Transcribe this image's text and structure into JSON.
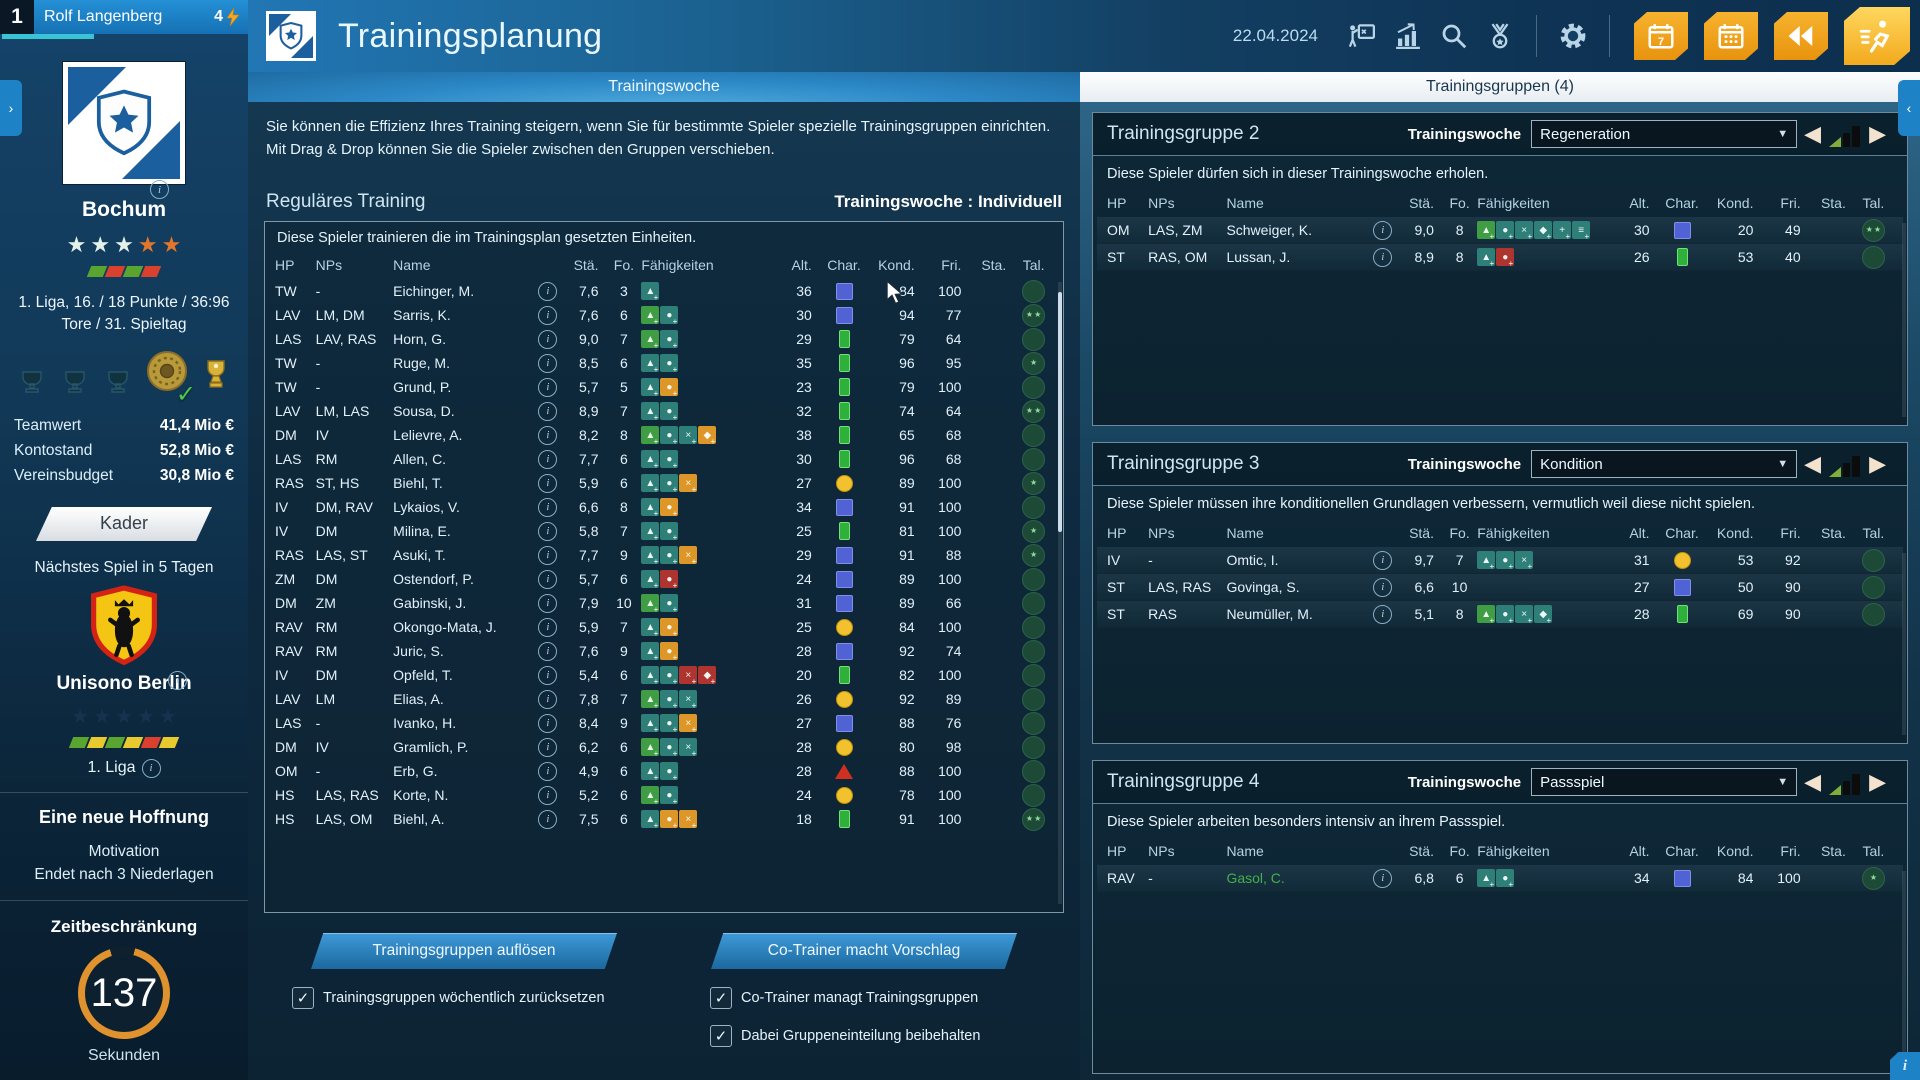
{
  "colors": {
    "accent_orange": "#f0a21c",
    "tab_blue": "#2b87c4",
    "panel_navy": "#0d2434",
    "name_green": "#43b049",
    "timer_orange": "#e0922f"
  },
  "sidebar": {
    "slot": "1",
    "manager": "Rolf Langenberg",
    "energy": "4",
    "club": "Bochum",
    "club_stars": [
      "light",
      "light",
      "light",
      "orange",
      "orange"
    ],
    "club_form": [
      "green",
      "red",
      "green",
      "red"
    ],
    "league_text": "1. Liga, 16. / 18 Punkte / 36:96 Tore / 31. Spieltag",
    "finances": [
      {
        "label": "Teamwert",
        "value": "41,4 Mio €"
      },
      {
        "label": "Kontostand",
        "value": "52,8 Mio €"
      },
      {
        "label": "Vereinsbudget",
        "value": "30,8 Mio €"
      }
    ],
    "kader_label": "Kader",
    "next_match": "Nächstes Spiel in 5 Tagen",
    "opponent": "Unisono Berlin",
    "opponent_stars": [
      "navy",
      "navy",
      "navy",
      "navy",
      "navy"
    ],
    "opponent_form": [
      "green",
      "yellow",
      "green",
      "yellow",
      "red",
      "yellow"
    ],
    "opponent_league": "1. Liga",
    "story": "Eine neue Hoffnung",
    "motivation_label": "Motivation",
    "motivation_value": "Endet nach 3 Niederlagen",
    "timer_label": "Zeitbeschränkung",
    "timer_value": "137",
    "timer_unit": "Sekunden"
  },
  "header": {
    "title": "Trainingsplanung",
    "date": "22.04.2024",
    "icons": [
      "tactics-board",
      "statistics",
      "search",
      "medal",
      "settings",
      "calendar-week",
      "calendar-month",
      "rewind",
      "continue"
    ]
  },
  "columns": [
    "HP",
    "NPs",
    "Name",
    "Stä.",
    "Fo.",
    "Fähigkeiten",
    "Alt.",
    "Char.",
    "Kond.",
    "Fri.",
    "Sta.",
    "Tal."
  ],
  "left_panel": {
    "tab": "Trainingswoche",
    "intro": "Sie können die Effizienz Ihres Training steigern, wenn Sie für bestimmte Spieler spezielle Trainingsgruppen einrichten. Mit Drag & Drop können Sie die Spieler zwischen den Gruppen verschieben.",
    "section_title": "Reguläres Training",
    "week_mode": "Trainingswoche : Individuell",
    "table_note": "Diese Spieler trainieren die im Trainingsplan gesetzten Einheiten.",
    "rows": [
      {
        "hp": "TW",
        "nps": "-",
        "name": "Eichinger, M.",
        "sta": "7,6",
        "fo": "3",
        "skills": [
          "teal"
        ],
        "alt": "36",
        "char": "blue",
        "kond": "84",
        "fri": "100",
        "tal": 0
      },
      {
        "hp": "LAV",
        "nps": "LM, DM",
        "name": "Sarris, K.",
        "sta": "7,6",
        "fo": "6",
        "skills": [
          "green",
          "teal"
        ],
        "alt": "30",
        "char": "blue",
        "kond": "94",
        "fri": "77",
        "tal": 2
      },
      {
        "hp": "LAS",
        "nps": "LAV, RAS",
        "name": "Horn, G.",
        "sta": "9,0",
        "fo": "7",
        "skills": [
          "green",
          "teal"
        ],
        "alt": "29",
        "char": "green",
        "kond": "79",
        "fri": "64",
        "tal": 0
      },
      {
        "hp": "TW",
        "nps": "-",
        "name": "Ruge, M.",
        "sta": "8,5",
        "fo": "6",
        "skills": [
          "teal",
          "teal"
        ],
        "alt": "35",
        "char": "green",
        "kond": "96",
        "fri": "95",
        "tal": 1
      },
      {
        "hp": "TW",
        "nps": "-",
        "name": "Grund, P.",
        "sta": "5,7",
        "fo": "5",
        "skills": [
          "teal",
          "orange"
        ],
        "alt": "23",
        "char": "green",
        "kond": "79",
        "fri": "100",
        "tal": 0
      },
      {
        "hp": "LAV",
        "nps": "LM, LAS",
        "name": "Sousa, D.",
        "sta": "8,9",
        "fo": "7",
        "skills": [
          "teal",
          "teal"
        ],
        "alt": "32",
        "char": "green",
        "kond": "74",
        "fri": "64",
        "tal": 2
      },
      {
        "hp": "DM",
        "nps": "IV",
        "name": "Lelievre, A.",
        "sta": "8,2",
        "fo": "8",
        "skills": [
          "green",
          "teal",
          "teal",
          "orange"
        ],
        "alt": "38",
        "char": "green",
        "kond": "65",
        "fri": "68",
        "tal": 0
      },
      {
        "hp": "LAS",
        "nps": "RM",
        "name": "Allen, C.",
        "sta": "7,7",
        "fo": "6",
        "skills": [
          "teal",
          "teal"
        ],
        "alt": "30",
        "char": "green",
        "kond": "96",
        "fri": "68",
        "tal": 0
      },
      {
        "hp": "RAS",
        "nps": "ST, HS",
        "name": "Biehl, T.",
        "sta": "5,9",
        "fo": "6",
        "skills": [
          "teal",
          "teal",
          "orange"
        ],
        "alt": "27",
        "char": "yellow",
        "kond": "89",
        "fri": "100",
        "tal": 1
      },
      {
        "hp": "IV",
        "nps": "DM, RAV",
        "name": "Lykaios, V.",
        "sta": "6,6",
        "fo": "8",
        "skills": [
          "teal",
          "orange"
        ],
        "alt": "34",
        "char": "blue",
        "kond": "91",
        "fri": "100",
        "tal": 0
      },
      {
        "hp": "IV",
        "nps": "DM",
        "name": "Milina, E.",
        "sta": "5,8",
        "fo": "7",
        "skills": [
          "teal",
          "teal"
        ],
        "alt": "25",
        "char": "green",
        "kond": "81",
        "fri": "100",
        "tal": 1
      },
      {
        "hp": "RAS",
        "nps": "LAS, ST",
        "name": "Asuki, T.",
        "sta": "7,7",
        "fo": "9",
        "skills": [
          "teal",
          "teal",
          "orange"
        ],
        "alt": "29",
        "char": "blue",
        "kond": "91",
        "fri": "88",
        "tal": 1
      },
      {
        "hp": "ZM",
        "nps": "DM",
        "name": "Ostendorf, P.",
        "sta": "5,7",
        "fo": "6",
        "skills": [
          "teal",
          "red"
        ],
        "alt": "24",
        "char": "blue",
        "kond": "89",
        "fri": "100",
        "tal": 0
      },
      {
        "hp": "DM",
        "nps": "ZM",
        "name": "Gabinski, J.",
        "sta": "7,9",
        "fo": "10",
        "skills": [
          "green",
          "teal"
        ],
        "alt": "31",
        "char": "blue",
        "kond": "89",
        "fri": "66",
        "tal": 0
      },
      {
        "hp": "RAV",
        "nps": "RM",
        "name": "Okongo-Mata, J.",
        "sta": "5,9",
        "fo": "7",
        "skills": [
          "teal",
          "orange"
        ],
        "alt": "25",
        "char": "yellow",
        "kond": "84",
        "fri": "100",
        "tal": 0
      },
      {
        "hp": "RAV",
        "nps": "RM",
        "name": "Juric, S.",
        "sta": "7,6",
        "fo": "9",
        "skills": [
          "teal",
          "orange"
        ],
        "alt": "28",
        "char": "blue",
        "kond": "92",
        "fri": "74",
        "tal": 0
      },
      {
        "hp": "IV",
        "nps": "DM",
        "name": "Opfeld, T.",
        "sta": "5,4",
        "fo": "6",
        "skills": [
          "teal",
          "teal",
          "red",
          "red"
        ],
        "alt": "20",
        "char": "green",
        "kond": "82",
        "fri": "100",
        "tal": 0
      },
      {
        "hp": "LAV",
        "nps": "LM",
        "name": "Elias, A.",
        "sta": "7,8",
        "fo": "7",
        "skills": [
          "green",
          "teal",
          "teal"
        ],
        "alt": "26",
        "char": "yellow",
        "kond": "92",
        "fri": "89",
        "tal": 0
      },
      {
        "hp": "LAS",
        "nps": "-",
        "name": "Ivanko, H.",
        "sta": "8,4",
        "fo": "9",
        "skills": [
          "teal",
          "teal",
          "orange"
        ],
        "alt": "27",
        "char": "blue",
        "kond": "88",
        "fri": "76",
        "tal": 0
      },
      {
        "hp": "DM",
        "nps": "IV",
        "name": "Gramlich, P.",
        "sta": "6,2",
        "fo": "6",
        "skills": [
          "green",
          "teal",
          "teal"
        ],
        "alt": "28",
        "char": "yellow",
        "kond": "80",
        "fri": "98",
        "tal": 0
      },
      {
        "hp": "OM",
        "nps": "-",
        "name": "Erb, G.",
        "sta": "4,9",
        "fo": "6",
        "skills": [
          "teal",
          "teal"
        ],
        "alt": "28",
        "char": "red",
        "kond": "88",
        "fri": "100",
        "tal": 0
      },
      {
        "hp": "HS",
        "nps": "LAS, RAS",
        "name": "Korte, N.",
        "sta": "5,2",
        "fo": "6",
        "skills": [
          "green",
          "teal"
        ],
        "alt": "24",
        "char": "yellow",
        "kond": "78",
        "fri": "100",
        "tal": 0
      },
      {
        "hp": "HS",
        "nps": "LAS, OM",
        "name": "Biehl, A.",
        "sta": "7,5",
        "fo": "6",
        "skills": [
          "teal",
          "orange",
          "orange"
        ],
        "alt": "18",
        "char": "green",
        "kond": "91",
        "fri": "100",
        "tal": 2
      }
    ],
    "buttons": [
      "Trainingsgruppen auflösen",
      "Co-Trainer macht Vorschlag"
    ],
    "checkboxes": [
      {
        "label": "Trainingsgruppen wöchentlich zurücksetzen",
        "checked": true
      },
      {
        "label": "Co-Trainer managt Trainingsgruppen",
        "checked": true
      },
      {
        "label": "Dabei Gruppeneinteilung beibehalten",
        "checked": true
      }
    ]
  },
  "right_panel": {
    "tab": "Trainingsgruppen (4)",
    "week_label": "Trainingswoche",
    "groups": [
      {
        "title": "Trainingsgruppe 2",
        "week": "Regeneration",
        "note": "Diese Spieler dürfen sich in dieser Trainingswoche erholen.",
        "rows": [
          {
            "hp": "OM",
            "nps": "LAS, ZM",
            "name": "Schweiger, K.",
            "sta": "9,0",
            "fo": "8",
            "skills": [
              "green",
              "teal",
              "teal",
              "teal",
              "teal",
              "teal"
            ],
            "alt": "30",
            "char": "blue",
            "kond": "20",
            "fri": "49",
            "tal": 2
          },
          {
            "hp": "ST",
            "nps": "RAS, OM",
            "name": "Lussan, J.",
            "sta": "8,9",
            "fo": "8",
            "skills": [
              "teal",
              "red"
            ],
            "alt": "26",
            "char": "green",
            "kond": "53",
            "fri": "40",
            "tal": 0
          }
        ]
      },
      {
        "title": "Trainingsgruppe 3",
        "week": "Kondition",
        "note": "Diese Spieler müssen ihre konditionellen Grundlagen verbessern, vermutlich weil diese nicht spielen.",
        "rows": [
          {
            "hp": "IV",
            "nps": "-",
            "name": "Omtic, I.",
            "sta": "9,7",
            "fo": "7",
            "skills": [
              "teal",
              "teal",
              "teal"
            ],
            "alt": "31",
            "char": "yellow",
            "kond": "53",
            "fri": "92",
            "tal": 0
          },
          {
            "hp": "ST",
            "nps": "LAS, RAS",
            "name": "Govinga, S.",
            "sta": "6,6",
            "fo": "10",
            "skills": [],
            "alt": "27",
            "char": "blue",
            "kond": "50",
            "fri": "90",
            "tal": 0
          },
          {
            "hp": "ST",
            "nps": "RAS",
            "name": "Neumüller, M.",
            "sta": "5,1",
            "fo": "8",
            "skills": [
              "green",
              "teal",
              "teal",
              "teal"
            ],
            "alt": "28",
            "char": "green",
            "kond": "69",
            "fri": "90",
            "tal": 0
          }
        ]
      },
      {
        "title": "Trainingsgruppe 4",
        "week": "Passspiel",
        "note": "Diese Spieler arbeiten besonders intensiv an ihrem Passspiel.",
        "rows": [
          {
            "hp": "RAV",
            "nps": "-",
            "name": "Gasol, C.",
            "name_color": "#43b049",
            "sta": "6,8",
            "fo": "6",
            "skills": [
              "teal",
              "teal"
            ],
            "alt": "34",
            "char": "blue",
            "kond": "84",
            "fri": "100",
            "tal": 1
          }
        ]
      }
    ]
  }
}
